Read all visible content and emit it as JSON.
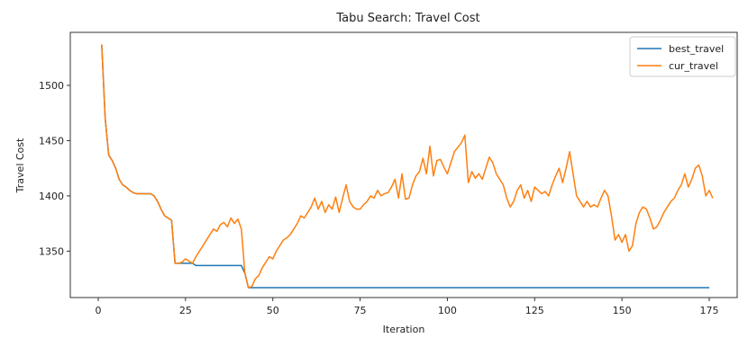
{
  "chart_data": {
    "type": "line",
    "title": "Tabu Search: Travel Cost",
    "xlabel": "Iteration",
    "ylabel": "Travel Cost",
    "xlim": [
      -8,
      183
    ],
    "ylim": [
      1308,
      1548
    ],
    "xticks": [
      0,
      25,
      50,
      75,
      100,
      125,
      150,
      175
    ],
    "yticks": [
      1350,
      1400,
      1450,
      1500
    ],
    "grid": false,
    "legend_position": "top-right",
    "series": [
      {
        "name": "best_travel",
        "color": "#1f77b4",
        "x": [
          1,
          2,
          3,
          4,
          5,
          6,
          7,
          8,
          9,
          10,
          11,
          12,
          13,
          14,
          15,
          16,
          17,
          18,
          19,
          20,
          21,
          22,
          23,
          24,
          25,
          26,
          27,
          28,
          29,
          30,
          31,
          32,
          33,
          34,
          35,
          36,
          37,
          38,
          39,
          40,
          41,
          42,
          43,
          44,
          45,
          50,
          60,
          70,
          80,
          90,
          100,
          110,
          120,
          130,
          140,
          150,
          160,
          170,
          175
        ],
        "values": [
          1537,
          1470,
          1437,
          1432,
          1425,
          1415,
          1410,
          1408,
          1405,
          1403,
          1402,
          1402,
          1402,
          1402,
          1402,
          1400,
          1395,
          1388,
          1382,
          1380,
          1378,
          1339,
          1339,
          1339,
          1339,
          1339,
          1339,
          1337,
          1337,
          1337,
          1337,
          1337,
          1337,
          1337,
          1337,
          1337,
          1337,
          1337,
          1337,
          1337,
          1337,
          1330,
          1317,
          1317,
          1317,
          1317,
          1317,
          1317,
          1317,
          1317,
          1317,
          1317,
          1317,
          1317,
          1317,
          1317,
          1317,
          1317,
          1317
        ]
      },
      {
        "name": "cur_travel",
        "color": "#ff7f0e",
        "x": [
          1,
          2,
          3,
          4,
          5,
          6,
          7,
          8,
          9,
          10,
          11,
          12,
          13,
          14,
          15,
          16,
          17,
          18,
          19,
          20,
          21,
          22,
          23,
          24,
          25,
          26,
          27,
          28,
          29,
          30,
          31,
          32,
          33,
          34,
          35,
          36,
          37,
          38,
          39,
          40,
          41,
          42,
          43,
          44,
          45,
          46,
          47,
          48,
          49,
          50,
          51,
          52,
          53,
          54,
          55,
          56,
          57,
          58,
          59,
          60,
          61,
          62,
          63,
          64,
          65,
          66,
          67,
          68,
          69,
          70,
          71,
          72,
          73,
          74,
          75,
          76,
          77,
          78,
          79,
          80,
          81,
          82,
          83,
          84,
          85,
          86,
          87,
          88,
          89,
          90,
          91,
          92,
          93,
          94,
          95,
          96,
          97,
          98,
          99,
          100,
          101,
          102,
          103,
          104,
          105,
          106,
          107,
          108,
          109,
          110,
          111,
          112,
          113,
          114,
          115,
          116,
          117,
          118,
          119,
          120,
          121,
          122,
          123,
          124,
          125,
          126,
          127,
          128,
          129,
          130,
          131,
          132,
          133,
          134,
          135,
          136,
          137,
          138,
          139,
          140,
          141,
          142,
          143,
          144,
          145,
          146,
          147,
          148,
          149,
          150,
          151,
          152,
          153,
          154,
          155,
          156,
          157,
          158,
          159,
          160,
          161,
          162,
          163,
          164,
          165,
          166,
          167,
          168,
          169,
          170,
          171,
          172,
          173,
          174,
          175,
          176
        ],
        "values": [
          1537,
          1470,
          1437,
          1432,
          1425,
          1415,
          1410,
          1408,
          1405,
          1403,
          1402,
          1402,
          1402,
          1402,
          1402,
          1400,
          1395,
          1388,
          1382,
          1380,
          1378,
          1339,
          1339,
          1340,
          1343,
          1341,
          1339,
          1345,
          1350,
          1355,
          1360,
          1365,
          1370,
          1368,
          1374,
          1376,
          1372,
          1380,
          1375,
          1379,
          1370,
          1330,
          1317,
          1318,
          1325,
          1328,
          1335,
          1340,
          1345,
          1343,
          1350,
          1355,
          1360,
          1362,
          1365,
          1370,
          1375,
          1382,
          1380,
          1385,
          1390,
          1398,
          1388,
          1395,
          1385,
          1392,
          1388,
          1399,
          1385,
          1398,
          1410,
          1395,
          1390,
          1388,
          1388,
          1392,
          1395,
          1400,
          1398,
          1405,
          1400,
          1402,
          1403,
          1408,
          1415,
          1398,
          1420,
          1397,
          1398,
          1410,
          1418,
          1422,
          1434,
          1420,
          1445,
          1418,
          1432,
          1433,
          1426,
          1420,
          1430,
          1440,
          1444,
          1448,
          1455,
          1412,
          1422,
          1416,
          1420,
          1415,
          1425,
          1435,
          1430,
          1420,
          1415,
          1410,
          1398,
          1390,
          1395,
          1405,
          1410,
          1398,
          1405,
          1395,
          1408,
          1405,
          1402,
          1404,
          1400,
          1410,
          1418,
          1425,
          1412,
          1425,
          1440,
          1420,
          1400,
          1395,
          1390,
          1395,
          1390,
          1392,
          1390,
          1398,
          1405,
          1400,
          1382,
          1360,
          1365,
          1358,
          1365,
          1350,
          1355,
          1375,
          1385,
          1390,
          1388,
          1380,
          1370,
          1372,
          1378,
          1385,
          1390,
          1395,
          1398,
          1405,
          1410,
          1420,
          1408,
          1415,
          1425,
          1428,
          1418,
          1400,
          1405,
          1398
        ]
      }
    ]
  }
}
